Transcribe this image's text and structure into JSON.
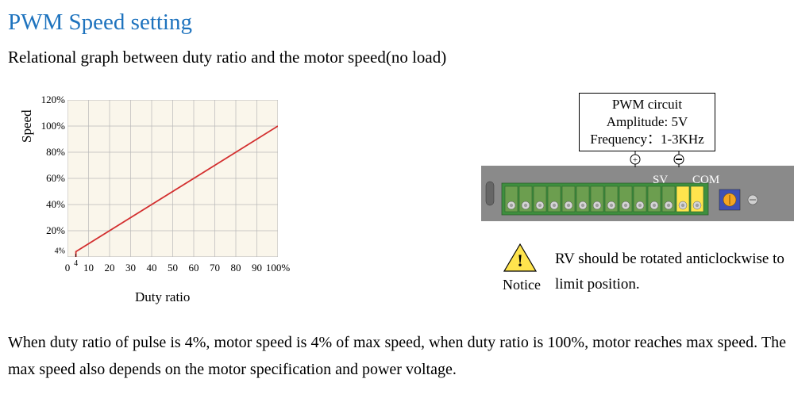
{
  "title": "PWM Speed setting",
  "title_color": "#1E73BE",
  "subtitle": "Relational graph between duty ratio and the motor speed(no load)",
  "chart": {
    "type": "line",
    "xlabel": "Duty ratio",
    "ylabel": "Speed",
    "x_ticks": [
      "0",
      "10",
      "20",
      "30",
      "40",
      "50",
      "60",
      "70",
      "80",
      "90",
      "100%"
    ],
    "x_small_tick": "4",
    "y_ticks": [
      "20%",
      "40%",
      "60%",
      "80%",
      "100%",
      "120%"
    ],
    "y_small_tick": "4%",
    "xlim": [
      0,
      100
    ],
    "ylim": [
      0,
      120
    ],
    "plot_bg_color": "#FAF6EB",
    "grid_color": "#B8B8B8",
    "line_color": "#D32F2F",
    "line_points": [
      [
        4,
        0
      ],
      [
        4,
        4
      ],
      [
        100,
        100
      ]
    ],
    "tick_font_size": 13,
    "label_font_size": 17
  },
  "circuit": {
    "line1": "PWM circuit",
    "line2": "Amplitude: 5V",
    "line3": "Frequency：1-3KHz",
    "border_color": "#000000",
    "bg_color": "#ffffff",
    "font_size": 17,
    "plus_label": "+",
    "minus_label": "-"
  },
  "terminal": {
    "panel_bg": "#8A8A8A",
    "block_fill": "#3E8F3E",
    "block_inner": "#6C9E4F",
    "highlight_fill": "#FFE44D",
    "screw_color": "#D6D6D6",
    "inner_screw": "#9E9E9E",
    "blue_box": "#3F51B5",
    "orange_circle": "#F5A623",
    "pot_circle": "#D0D0D0",
    "sv_label": "SV",
    "com_label": "COM",
    "label_color": "#ffffff",
    "block_count": 14
  },
  "notice": {
    "icon_fill": "#FFE44D",
    "icon_stroke": "#000000",
    "bang": "!",
    "label": "Notice",
    "text": "RV should be rotated anticlockwise to limit position."
  },
  "body_text": "When duty ratio of pulse is 4%, motor speed is 4% of max speed, when duty ratio is 100%, motor reaches max speed. The max speed also depends on the motor specification and power voltage."
}
